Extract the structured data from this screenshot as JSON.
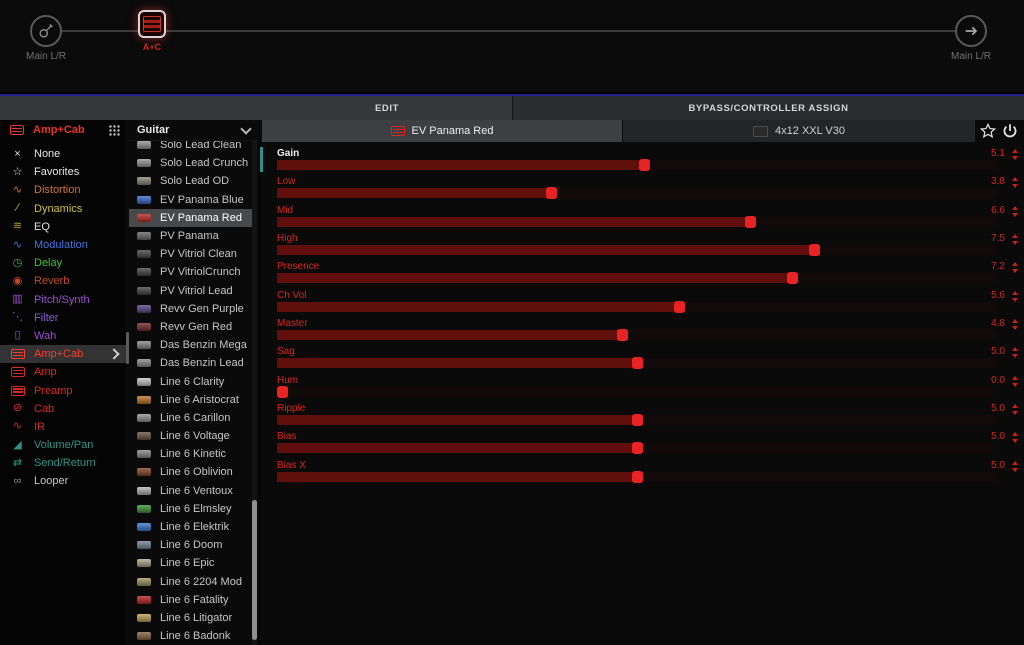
{
  "signal_chain": {
    "input": {
      "label": "Main L/R",
      "icon": "guitar-input-icon"
    },
    "block": {
      "label": "A+C",
      "type": "amp-cab-block"
    },
    "output": {
      "label": "Main L/R",
      "icon": "arrow-right-icon"
    }
  },
  "tabs": {
    "edit": "EDIT",
    "bypass": "BYPASS/CONTROLLER ASSIGN"
  },
  "category_panel": {
    "header": {
      "label": "Amp+Cab",
      "color": "#e8352a"
    },
    "items": [
      {
        "label": "None",
        "icon": "x-icon",
        "glyph": "×",
        "color": "#e6e6e6"
      },
      {
        "label": "Favorites",
        "icon": "star-icon",
        "glyph": "☆",
        "color": "#e6e6e6"
      },
      {
        "label": "Distortion",
        "icon": "distortion-wave-icon",
        "glyph": "∿",
        "color": "#d5772f"
      },
      {
        "label": "Dynamics",
        "icon": "dynamics-icon",
        "glyph": "∕",
        "color": "#cfc22f"
      },
      {
        "label": "EQ",
        "icon": "eq-icon",
        "glyph": "≋",
        "color": "#e2e2d6",
        "icon_color": "#b0a52a"
      },
      {
        "label": "Modulation",
        "icon": "modulation-wave-icon",
        "glyph": "∿",
        "color": "#3f74dd"
      },
      {
        "label": "Delay",
        "icon": "delay-clock-icon",
        "glyph": "◷",
        "color": "#3ac43e"
      },
      {
        "label": "Reverb",
        "icon": "reverb-icon",
        "glyph": "◉",
        "color": "#c44a28"
      },
      {
        "label": "Pitch/Synth",
        "icon": "pitch-synth-icon",
        "glyph": "▥",
        "color": "#9b4fd0"
      },
      {
        "label": "Filter",
        "icon": "filter-icon",
        "glyph": "⋱",
        "color": "#8a5fd0"
      },
      {
        "label": "Wah",
        "icon": "wah-pedal-icon",
        "glyph": "▯",
        "color": "#9b4fd0"
      },
      {
        "label": "Amp+Cab",
        "icon": "amp-cab-icon",
        "glyph": "amp",
        "color": "#ff3b2e",
        "selected": true
      },
      {
        "label": "Amp",
        "icon": "amp-icon",
        "glyph": "amp",
        "color": "#d82a20"
      },
      {
        "label": "Preamp",
        "icon": "preamp-icon",
        "glyph": "amp",
        "color": "#d82a20"
      },
      {
        "label": "Cab",
        "icon": "cab-speaker-icon",
        "glyph": "⊘",
        "color": "#d82a20"
      },
      {
        "label": "IR",
        "icon": "ir-impulse-icon",
        "glyph": "∿",
        "color": "#d82a20"
      },
      {
        "label": "Volume/Pan",
        "icon": "volume-pan-icon",
        "glyph": "◢",
        "color": "#2e9488"
      },
      {
        "label": "Send/Return",
        "icon": "send-return-icon",
        "glyph": "⇄",
        "color": "#2e9488"
      },
      {
        "label": "Looper",
        "icon": "looper-icon",
        "glyph": "∞",
        "color": "#c6c6c6",
        "icon_color": "#8f8f8f"
      }
    ]
  },
  "model_panel": {
    "header": {
      "label": "Guitar"
    },
    "items": [
      {
        "label": "Solo Lead Clean",
        "icon_color": "#9a9a9a"
      },
      {
        "label": "Solo Lead Crunch",
        "icon_color": "#9a9a9a"
      },
      {
        "label": "Solo Lead OD",
        "icon_color": "#8d8d7d"
      },
      {
        "label": "EV Panama Blue",
        "icon_color": "#3f6fd0"
      },
      {
        "label": "EV Panama Red",
        "icon_color": "#c03028",
        "selected": true
      },
      {
        "label": "PV Panama",
        "icon_color": "#6d6d6d"
      },
      {
        "label": "PV Vitriol Clean",
        "icon_color": "#4a4a4a"
      },
      {
        "label": "PV VitriolCrunch",
        "icon_color": "#4a4a4a"
      },
      {
        "label": "PV Vitriol Lead",
        "icon_color": "#4a4a4a"
      },
      {
        "label": "Revv Gen Purple",
        "icon_color": "#5a4a8a"
      },
      {
        "label": "Revv Gen Red",
        "icon_color": "#7a3030"
      },
      {
        "label": "Das Benzin Mega",
        "icon_color": "#8d8d8d"
      },
      {
        "label": "Das Benzin Lead",
        "icon_color": "#8d8d8d"
      },
      {
        "label": "Line 6 Clarity",
        "icon_color": "#c9c9c9"
      },
      {
        "label": "Line 6 Aristocrat",
        "icon_color": "#c07a30"
      },
      {
        "label": "Line 6 Carillon",
        "icon_color": "#9a9a9a"
      },
      {
        "label": "Line 6 Voltage",
        "icon_color": "#6d5a48"
      },
      {
        "label": "Line 6 Kinetic",
        "icon_color": "#8d8d8d"
      },
      {
        "label": "Line 6 Oblivion",
        "icon_color": "#8a4a2a"
      },
      {
        "label": "Line 6 Ventoux",
        "icon_color": "#b9b9b9"
      },
      {
        "label": "Line 6 Elmsley",
        "icon_color": "#3f9a3f"
      },
      {
        "label": "Line 6 Elektrik",
        "icon_color": "#3f7fd0"
      },
      {
        "label": "Line 6 Doom",
        "icon_color": "#7a8a9a"
      },
      {
        "label": "Line 6 Epic",
        "icon_color": "#b0a890"
      },
      {
        "label": "Line 6 2204 Mod",
        "icon_color": "#a89a6a"
      },
      {
        "label": "Line 6 Fatality",
        "icon_color": "#c02a2a"
      },
      {
        "label": "Line 6 Litigator",
        "icon_color": "#c0a85a"
      },
      {
        "label": "Line 6 Badonk",
        "icon_color": "#8a6a4a"
      }
    ]
  },
  "editor": {
    "amp_button": {
      "label": "EV Panama Red"
    },
    "cab_button": {
      "label": "4x12 XXL V30"
    },
    "accent_color": "#d7261c",
    "params": [
      {
        "label": "Gain",
        "value": "5.1",
        "amount": 0.51,
        "selected": true
      },
      {
        "label": "Low",
        "value": "3.8",
        "amount": 0.38
      },
      {
        "label": "Mid",
        "value": "6.6",
        "amount": 0.66
      },
      {
        "label": "High",
        "value": "7.5",
        "amount": 0.75
      },
      {
        "label": "Presence",
        "value": "7.2",
        "amount": 0.72
      },
      {
        "label": "Ch Vol",
        "value": "5.6",
        "amount": 0.56
      },
      {
        "label": "Master",
        "value": "4.8",
        "amount": 0.48
      },
      {
        "label": "Sag",
        "value": "5.0",
        "amount": 0.5
      },
      {
        "label": "Hum",
        "value": "0.0",
        "amount": 0.0
      },
      {
        "label": "Ripple",
        "value": "5.0",
        "amount": 0.5
      },
      {
        "label": "Bias",
        "value": "5.0",
        "amount": 0.5
      },
      {
        "label": "Bias X",
        "value": "5.0",
        "amount": 0.5
      }
    ]
  }
}
